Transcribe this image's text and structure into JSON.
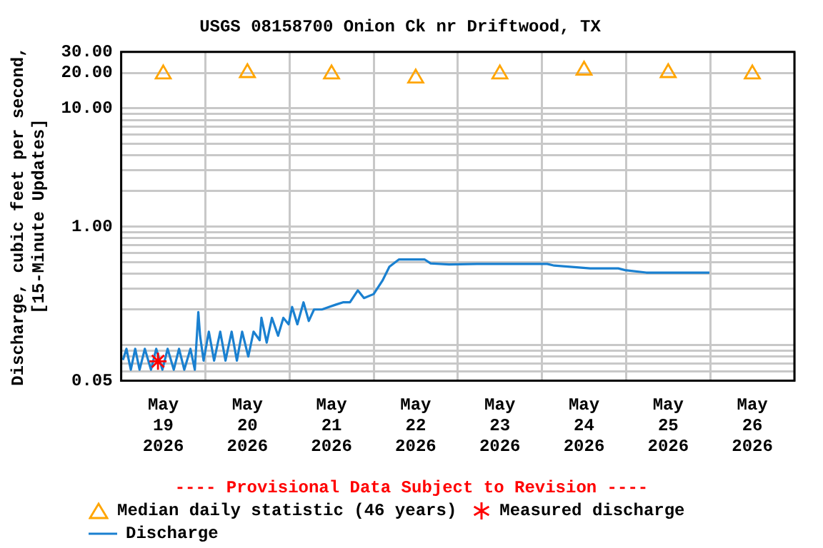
{
  "chart_data": {
    "type": "line",
    "title": "USGS 08158700 Onion Ck nr Driftwood, TX",
    "ylabel": "Discharge, cubic feet per second,\n[15-Minute Updates]",
    "log": "y",
    "grid": true,
    "legend": "bottom",
    "xlim": [
      "2026-05-19",
      "2026-05-27"
    ],
    "xticks": [
      {
        "value": "2026-05-19",
        "label": null
      },
      {
        "value": "2026-05-19T12:00",
        "label": "May 19 2026"
      },
      {
        "value": "2026-05-20",
        "label": null
      },
      {
        "value": "2026-05-20T12:00",
        "label": "May 20 2026"
      },
      {
        "value": "2026-05-21",
        "label": null
      },
      {
        "value": "2026-05-21T12:00",
        "label": "May 21 2026"
      },
      {
        "value": "2026-05-22",
        "label": null
      },
      {
        "value": "2026-05-22T12:00",
        "label": "May 22 2026"
      },
      {
        "value": "2026-05-23",
        "label": null
      },
      {
        "value": "2026-05-23T12:00",
        "label": "May 23 2026"
      },
      {
        "value": "2026-05-24",
        "label": null
      },
      {
        "value": "2026-05-24T12:00",
        "label": "May 24 2026"
      },
      {
        "value": "2026-05-25",
        "label": null
      },
      {
        "value": "2026-05-25T12:00",
        "label": "May 25 2026"
      },
      {
        "value": "2026-05-26",
        "label": null
      },
      {
        "value": "2026-05-26T12:00",
        "label": "May 26 2026"
      },
      {
        "value": "2026-05-27",
        "label": null
      }
    ],
    "ylim": [
      0.05,
      30
    ],
    "yticks": [
      {
        "value": 0.05,
        "label": "0.05"
      },
      {
        "value": 0.06,
        "label": null
      },
      {
        "value": 0.07,
        "label": null
      },
      {
        "value": 0.08,
        "label": null
      },
      {
        "value": 0.09,
        "label": null
      },
      {
        "value": 0.1,
        "label": null
      },
      {
        "value": 0.2,
        "label": null
      },
      {
        "value": 0.3,
        "label": null
      },
      {
        "value": 0.4,
        "label": null
      },
      {
        "value": 0.5,
        "label": null
      },
      {
        "value": 0.6,
        "label": null
      },
      {
        "value": 0.7,
        "label": null
      },
      {
        "value": 0.8,
        "label": null
      },
      {
        "value": 0.9,
        "label": null
      },
      {
        "value": 1,
        "label": "1.00"
      },
      {
        "value": 2,
        "label": null
      },
      {
        "value": 3,
        "label": null
      },
      {
        "value": 4,
        "label": null
      },
      {
        "value": 5,
        "label": null
      },
      {
        "value": 6,
        "label": null
      },
      {
        "value": 7,
        "label": null
      },
      {
        "value": 8,
        "label": null
      },
      {
        "value": 9,
        "label": null
      },
      {
        "value": 10,
        "label": "10.00"
      },
      {
        "value": 20,
        "label": "20.00"
      },
      {
        "value": 30,
        "label": "30.00"
      }
    ],
    "annotations": [
      "---- Provisional Data Subject to Revision ----"
    ],
    "series": [
      {
        "name": "Median daily statistic (46 years)",
        "type": "scatter",
        "marker": "triangle",
        "color": "#ffa500",
        "x": [
          "2026-05-19T12:00",
          "2026-05-20T12:00",
          "2026-05-21T12:00",
          "2026-05-22T12:00",
          "2026-05-23T12:00",
          "2026-05-24T12:00",
          "2026-05-25T12:00",
          "2026-05-26T12:00"
        ],
        "values": [
          19.5,
          20,
          19.5,
          18,
          19.5,
          21,
          20,
          19.5
        ]
      },
      {
        "name": "Measured discharge",
        "type": "scatter",
        "marker": "cross",
        "color": "#ff0000",
        "x": [
          "2026-05-19T10:30"
        ],
        "values": [
          0.073
        ]
      },
      {
        "name": "Discharge",
        "marker": "none",
        "line_style": "solid",
        "color": "#1a80d0",
        "x": [
          "2026-05-19T00:30",
          "2026-05-19T01:30",
          "2026-05-19T02:45",
          "2026-05-19T04:00",
          "2026-05-19T05:15",
          "2026-05-19T06:45",
          "2026-05-19T08:30",
          "2026-05-19T10:00",
          "2026-05-19T11:45",
          "2026-05-19T13:15",
          "2026-05-19T15:00",
          "2026-05-19T16:30",
          "2026-05-19T18:00",
          "2026-05-19T19:45",
          "2026-05-19T21:00",
          "2026-05-19T22:00",
          "2026-05-19T22:30",
          "2026-05-19T23:30",
          "2026-05-20T01:00",
          "2026-05-20T02:30",
          "2026-05-20T04:15",
          "2026-05-20T05:45",
          "2026-05-20T07:30",
          "2026-05-20T09:00",
          "2026-05-20T10:30",
          "2026-05-20T12:15",
          "2026-05-20T13:45",
          "2026-05-20T15:30",
          "2026-05-20T16:00",
          "2026-05-20T17:30",
          "2026-05-20T19:00",
          "2026-05-20T20:45",
          "2026-05-20T22:15",
          "2026-05-20T23:45",
          "2026-05-21T00:45",
          "2026-05-21T02:15",
          "2026-05-21T04:00",
          "2026-05-21T05:30",
          "2026-05-21T07:00",
          "2026-05-21T09:15",
          "2026-05-21T11:15",
          "2026-05-21T13:15",
          "2026-05-21T15:15",
          "2026-05-21T17:15",
          "2026-05-21T19:30",
          "2026-05-21T21:15",
          "2026-05-22T00:00",
          "2026-05-22T02:30",
          "2026-05-22T04:30",
          "2026-05-22T07:15",
          "2026-05-22T14:30",
          "2026-05-22T16:15",
          "2026-05-22T21:30",
          "2026-05-23T05:30",
          "2026-05-24T01:30",
          "2026-05-24T03:30",
          "2026-05-24T13:45",
          "2026-05-24T21:45",
          "2026-05-24T23:45",
          "2026-05-25T05:45",
          "2026-05-25T23:45"
        ],
        "values": [
          0.075,
          0.093,
          0.062,
          0.093,
          0.062,
          0.093,
          0.062,
          0.093,
          0.062,
          0.093,
          0.062,
          0.093,
          0.062,
          0.093,
          0.062,
          0.19,
          0.12,
          0.074,
          0.13,
          0.074,
          0.13,
          0.074,
          0.13,
          0.074,
          0.13,
          0.08,
          0.13,
          0.11,
          0.17,
          0.105,
          0.17,
          0.12,
          0.17,
          0.15,
          0.21,
          0.15,
          0.23,
          0.16,
          0.2,
          0.2,
          0.21,
          0.22,
          0.23,
          0.23,
          0.29,
          0.25,
          0.27,
          0.35,
          0.46,
          0.53,
          0.53,
          0.49,
          0.48,
          0.485,
          0.485,
          0.47,
          0.445,
          0.445,
          0.43,
          0.41,
          0.41
        ]
      }
    ]
  }
}
